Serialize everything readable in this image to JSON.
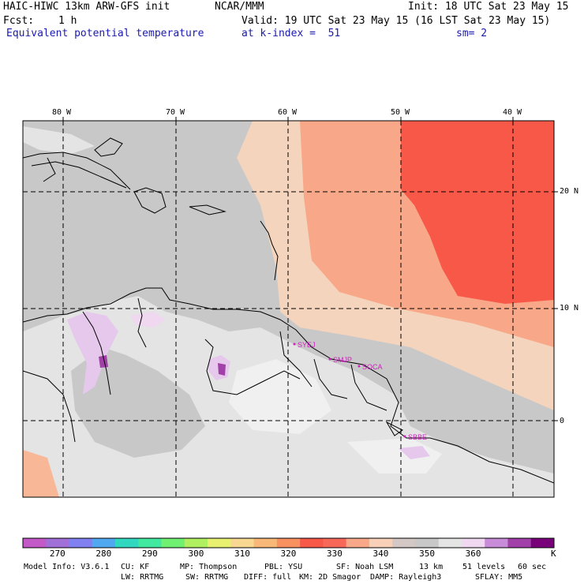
{
  "header": {
    "model": "HAIC-HIWC 13km ARW-GFS init",
    "org": "NCAR/MMM",
    "init": "Init: 18 UTC Sat 23 May 15",
    "fcst_label": "Fcst:",
    "fcst_value": "1 h",
    "valid": "Valid: 19 UTC Sat 23 May 15 (16 LST Sat 23 May 15)",
    "field": "Equivalent potential temperature",
    "level": "at k-index =  51",
    "smooth": "sm= 2"
  },
  "map": {
    "longitude_labels": [
      "80 W",
      "70 W",
      "60 W",
      "50 W",
      "40 W"
    ],
    "latitude_labels": [
      "20 N",
      "10 N",
      "0"
    ],
    "stations": [
      "SYEJ",
      "SMJP",
      "SOCA",
      "SBBE"
    ]
  },
  "colorbar": {
    "colors": [
      "#c45ac8",
      "#a070d8",
      "#8080f0",
      "#50a8f0",
      "#30d8c0",
      "#40e8a0",
      "#70f070",
      "#b0f060",
      "#e8f070",
      "#f8d890",
      "#f8b878",
      "#f89060",
      "#f85848",
      "#f86858",
      "#f8a888",
      "#f8d0b8",
      "#d4c8c4",
      "#c8c8c8",
      "#e4e4e4",
      "#f0d8f0",
      "#c88cd8",
      "#a040a8",
      "#780078"
    ],
    "labels": [
      "270",
      "280",
      "290",
      "300",
      "310",
      "320",
      "330",
      "340",
      "350",
      "360"
    ],
    "unit": "K"
  },
  "footer": {
    "line1": [
      "Model Info: V3.6.1",
      "CU: KF",
      "MP: Thompson",
      "PBL: YSU",
      "SF: Noah LSM",
      "13 km",
      "51 levels",
      "60 sec"
    ],
    "line2": [
      "LW: RRTMG",
      "SW: RRTMG",
      "DIFF: full",
      "KM: 2D Smagor",
      "DAMP: Rayleigh3",
      "SFLAY: MM5"
    ]
  }
}
